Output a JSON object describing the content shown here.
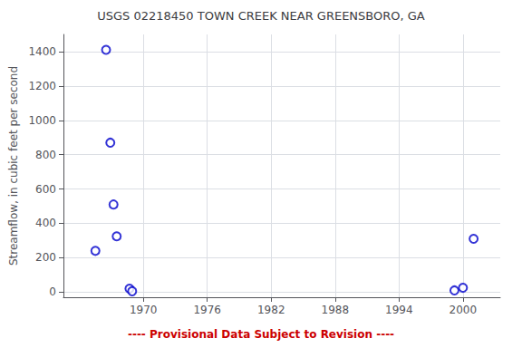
{
  "chart_data": {
    "type": "scatter",
    "title": "USGS 02218450 TOWN CREEK NEAR GREENSBORO, GA",
    "ylabel": "Streamflow, in cubic feet per second",
    "footnote": "---- Provisional Data Subject to Revision ----",
    "x": [
      1965.5,
      1966.5,
      1966.9,
      1967.2,
      1967.5,
      1968.7,
      1968.95,
      1999.2,
      2000.0,
      2001.0
    ],
    "values": [
      240,
      1410,
      870,
      510,
      325,
      20,
      5,
      10,
      25,
      310
    ],
    "color": "#0000CC",
    "marker": "circle",
    "xlim": [
      1962.5,
      2003.5
    ],
    "ylim": [
      -30,
      1500
    ],
    "xticks": [
      1970,
      1976,
      1982,
      1988,
      1994,
      2000
    ],
    "yticks": [
      0,
      200,
      400,
      600,
      800,
      1000,
      1200,
      1400
    ],
    "grid": true
  }
}
